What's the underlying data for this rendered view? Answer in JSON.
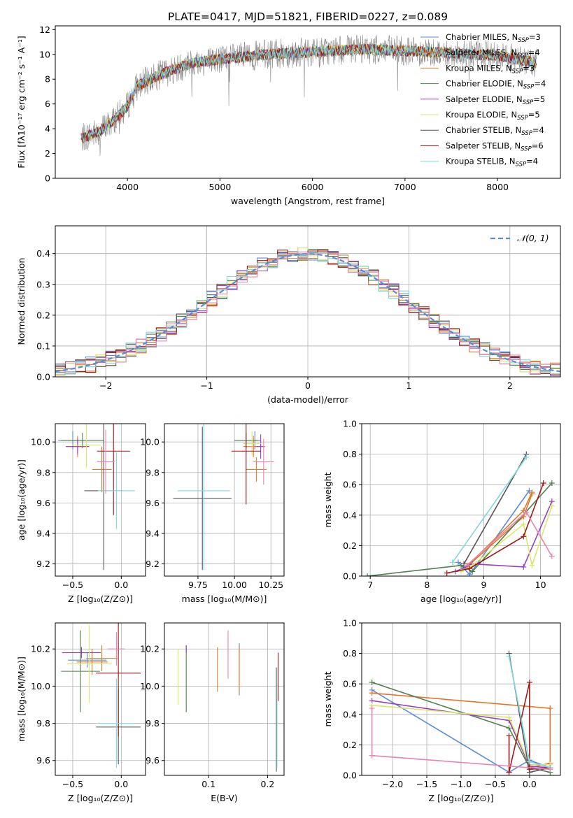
{
  "title": "PLATE=0417, MJD=51821, FIBERID=0227, z=0.089",
  "series_colors": [
    "#5b8bd6",
    "#e8742a",
    "#d67f2e",
    "#4f7f4f",
    "#9a3fc0",
    "#d8e86a",
    "#555555",
    "#a01818",
    "#80d8e0"
  ],
  "chart_data": [
    {
      "type": "line",
      "xlabel": "wavelength [Angstrom, rest frame]",
      "ylabel": "Flux [fλ10⁻¹⁷ erg cm⁻² s⁻¹ A⁻¹]",
      "xlim": [
        3220,
        8680
      ],
      "ylim": [
        0,
        12.3
      ],
      "xticks": [
        "4000",
        "5000",
        "6000",
        "7000",
        "8000"
      ],
      "yticks": [
        "0",
        "2",
        "4",
        "6",
        "8",
        "10",
        "12"
      ],
      "legend_position": "right",
      "legend": [
        "Chabrier MILES, N_SSP=3",
        "Salpeter MILES, N_SSP=4",
        "Kroupa MILES, N_SSP=3",
        "Chabrier ELODIE, N_SSP=4",
        "Salpeter ELODIE, N_SSP=5",
        "Kroupa ELODIE, N_SSP=5",
        "Chabrier STELIB, N_SSP=4",
        "Salpeter STELIB, N_SSP=6",
        "Kroupa STELIB, N_SSP=4"
      ],
      "x_range": [
        3500,
        8420
      ],
      "continuum": [
        [
          3500,
          3.2
        ],
        [
          3700,
          3.8
        ],
        [
          3900,
          5.0
        ],
        [
          4000,
          5.8
        ],
        [
          4100,
          7.4
        ],
        [
          4300,
          8.2
        ],
        [
          4500,
          8.8
        ],
        [
          4700,
          9.3
        ],
        [
          5000,
          9.6
        ],
        [
          5500,
          10.0
        ],
        [
          6000,
          10.2
        ],
        [
          6500,
          10.4
        ],
        [
          7000,
          10.3
        ],
        [
          7500,
          10.1
        ],
        [
          8000,
          9.9
        ],
        [
          8420,
          9.3
        ]
      ]
    },
    {
      "type": "line",
      "xlabel": "(data-model)/error",
      "ylabel": "Normed distribution",
      "xlim": [
        -2.5,
        2.5
      ],
      "ylim": [
        0,
        0.49
      ],
      "xticks": [
        "−2",
        "−1",
        "0",
        "1",
        "2"
      ],
      "yticks": [
        "0.0",
        "0.1",
        "0.2",
        "0.3",
        "0.4"
      ],
      "legend": [
        "𝒩(0, 1)"
      ],
      "legend_position": "top-right",
      "grid": true,
      "bin_width": 0.1
    },
    {
      "type": "scatter",
      "xlabel": "Z [log₁₀(Z/Z⊙)]",
      "ylabel": "age  [log₁₀(age/yr)]",
      "xlim": [
        -0.68,
        0.25
      ],
      "ylim": [
        9.12,
        10.12
      ],
      "xticks": [
        "−0.5",
        "0.0"
      ],
      "yticks": [
        "9.2",
        "9.4",
        "9.6",
        "9.8",
        "10.0"
      ],
      "grid": true,
      "points": [
        {
          "s": 0,
          "x": -0.5,
          "y": 10.01,
          "xerr": 0.15,
          "yerr": 0.06
        },
        {
          "s": 1,
          "x": -0.45,
          "y": 9.97,
          "xerr": 0.12,
          "yerr": 0.07
        },
        {
          "s": 2,
          "x": -0.2,
          "y": 9.82,
          "xerr": 0.1,
          "yerr": 0.15
        },
        {
          "s": 3,
          "x": -0.4,
          "y": 10.01,
          "xerr": 0.22,
          "yerr": 0.05
        },
        {
          "s": 4,
          "x": -0.45,
          "y": 9.97,
          "xerr": 0.12,
          "yerr": 0.05
        },
        {
          "s": 5,
          "x": -0.36,
          "y": 9.98,
          "xerr": 0.15,
          "yerr": 0.15
        },
        {
          "s": 6,
          "x": -0.18,
          "y": 9.68,
          "xerr": 0.2,
          "yerr": 0.52
        },
        {
          "s": 7,
          "x": -0.08,
          "y": 9.94,
          "xerr": 0.17,
          "yerr": 0.42
        },
        {
          "s": 8,
          "x": -0.05,
          "y": 9.68,
          "xerr": 0.19,
          "yerr": 0.25
        },
        {
          "s": 9,
          "x": -0.16,
          "y": 9.87,
          "xerr": 0.09,
          "yerr": 0.21
        }
      ]
    },
    {
      "type": "scatter",
      "xlabel": "mass [log₁₀(M/M⊙)]",
      "ylabel": "",
      "xlim": [
        9.52,
        10.34
      ],
      "ylim": [
        9.12,
        10.12
      ],
      "xticks": [
        "9.75",
        "10.00",
        "10.25"
      ],
      "yticks": [
        "9.2",
        "9.4",
        "9.6",
        "9.8",
        "10.0"
      ],
      "grid": true,
      "points": [
        {
          "s": 0,
          "x": 10.14,
          "y": 10.01,
          "xerr": 0.04,
          "yerr": 0.06
        },
        {
          "s": 1,
          "x": 10.13,
          "y": 9.97,
          "xerr": 0.07,
          "yerr": 0.07
        },
        {
          "s": 2,
          "x": 10.15,
          "y": 9.82,
          "xerr": 0.07,
          "yerr": 0.08
        },
        {
          "s": 3,
          "x": 10.08,
          "y": 10.01,
          "xerr": 0.08,
          "yerr": 0.05
        },
        {
          "s": 4,
          "x": 10.18,
          "y": 9.97,
          "xerr": 0.03,
          "yerr": 0.08
        },
        {
          "s": 5,
          "x": 10.12,
          "y": 9.99,
          "xerr": 0.06,
          "yerr": 0.08
        },
        {
          "s": 6,
          "x": 9.78,
          "y": 9.63,
          "xerr": 0.2,
          "yerr": 0.47
        },
        {
          "s": 7,
          "x": 10.08,
          "y": 9.94,
          "xerr": 0.1,
          "yerr": 0.35
        },
        {
          "s": 8,
          "x": 9.79,
          "y": 9.68,
          "xerr": 0.18,
          "yerr": 0.52
        },
        {
          "s": 9,
          "x": 10.2,
          "y": 9.87,
          "xerr": 0.07,
          "yerr": 0.15
        }
      ]
    },
    {
      "type": "line",
      "xlabel": "age  [log₁₀(age/yr)]",
      "ylabel": "mass weight",
      "xlim": [
        6.85,
        10.35
      ],
      "ylim": [
        0,
        1.0
      ],
      "xticks": [
        "7",
        "8",
        "9",
        "10"
      ],
      "yticks": [
        "0.0",
        "0.2",
        "0.4",
        "0.6",
        "0.8",
        "1.0"
      ],
      "grid": true,
      "series": [
        {
          "s": 0,
          "points": [
            [
              8.55,
              0.09
            ],
            [
              8.75,
              0.01
            ],
            [
              9.8,
              0.56
            ]
          ]
        },
        {
          "s": 1,
          "points": [
            [
              8.7,
              0.06
            ],
            [
              9.7,
              0.39
            ],
            [
              9.85,
              0.54
            ]
          ]
        },
        {
          "s": 2,
          "points": [
            [
              8.72,
              0.07
            ],
            [
              9.7,
              0.43
            ],
            [
              9.85,
              0.55
            ]
          ]
        },
        {
          "s": 3,
          "points": [
            [
              6.95,
              0.0
            ],
            [
              8.6,
              0.07
            ],
            [
              8.8,
              0.03
            ],
            [
              10.2,
              0.61
            ]
          ]
        },
        {
          "s": 4,
          "points": [
            [
              8.5,
              0.03
            ],
            [
              8.8,
              0.08
            ],
            [
              9.7,
              0.06
            ],
            [
              10.2,
              0.49
            ]
          ]
        },
        {
          "s": 5,
          "points": [
            [
              8.6,
              0.03
            ],
            [
              8.8,
              0.07
            ],
            [
              9.7,
              0.34
            ],
            [
              9.85,
              0.07
            ],
            [
              10.2,
              0.46
            ]
          ]
        },
        {
          "s": 6,
          "points": [
            [
              8.65,
              0.08
            ],
            [
              9.75,
              0.8
            ]
          ]
        },
        {
          "s": 7,
          "points": [
            [
              8.35,
              0.02
            ],
            [
              8.75,
              0.05
            ],
            [
              9.7,
              0.26
            ],
            [
              10.05,
              0.61
            ]
          ]
        },
        {
          "s": 8,
          "points": [
            [
              8.45,
              0.09
            ],
            [
              9.75,
              0.78
            ]
          ]
        },
        {
          "s": 9,
          "points": [
            [
              8.7,
              0.07
            ],
            [
              9.75,
              0.42
            ],
            [
              10.2,
              0.13
            ]
          ]
        }
      ]
    },
    {
      "type": "scatter",
      "xlabel": "Z [log₁₀(Z/Z⊙)]",
      "ylabel": "mass [log₁₀(M/M⊙)]",
      "xlim": [
        -0.68,
        0.25
      ],
      "ylim": [
        9.52,
        10.34
      ],
      "xticks": [
        "−0.5",
        "0.0"
      ],
      "yticks": [
        "9.6",
        "9.8",
        "10.0",
        "10.2"
      ],
      "grid": true,
      "points": [
        {
          "s": 0,
          "x": -0.35,
          "y": 10.14,
          "xerr": 0.2,
          "yerr": 0.04
        },
        {
          "s": 1,
          "x": -0.3,
          "y": 10.13,
          "xerr": 0.16,
          "yerr": 0.07
        },
        {
          "s": 2,
          "x": -0.2,
          "y": 10.15,
          "xerr": 0.16,
          "yerr": 0.07
        },
        {
          "s": 3,
          "x": -0.42,
          "y": 10.08,
          "xerr": 0.2,
          "yerr": 0.22
        },
        {
          "s": 4,
          "x": -0.41,
          "y": 10.18,
          "xerr": 0.2,
          "yerr": 0.03
        },
        {
          "s": 5,
          "x": -0.33,
          "y": 10.12,
          "xerr": 0.23,
          "yerr": 0.21
        },
        {
          "s": 6,
          "x": -0.03,
          "y": 9.78,
          "xerr": 0.23,
          "yerr": 0.2
        },
        {
          "s": 7,
          "x": -0.03,
          "y": 10.07,
          "xerr": 0.23,
          "yerr": 0.34
        },
        {
          "s": 8,
          "x": -0.05,
          "y": 9.8,
          "xerr": 0.19,
          "yerr": 0.24
        },
        {
          "s": 9,
          "x": -0.05,
          "y": 10.2,
          "xerr": 0.09,
          "yerr": 0.09
        }
      ]
    },
    {
      "type": "scatter",
      "xlabel": "E(B-V)",
      "ylabel": "",
      "xlim": [
        0.025,
        0.228
      ],
      "ylim": [
        9.52,
        10.34
      ],
      "xticks": [
        "0.1",
        "0.2"
      ],
      "yticks": [
        "9.6",
        "9.8",
        "10.0",
        "10.2"
      ],
      "grid": true,
      "points": [
        {
          "s": 0,
          "x": 0.152,
          "y": 10.09,
          "yerr": 0.14
        },
        {
          "s": 1,
          "x": 0.152,
          "y": 10.09,
          "yerr": 0.12
        },
        {
          "s": 2,
          "x": 0.115,
          "y": 10.09,
          "yerr": 0.12
        },
        {
          "s": 3,
          "x": 0.062,
          "y": 10.04,
          "yerr": 0.18
        },
        {
          "s": 4,
          "x": 0.062,
          "y": 10.2,
          "yerr": 0.02
        },
        {
          "s": 5,
          "x": 0.048,
          "y": 10.05,
          "yerr": 0.15
        },
        {
          "s": 6,
          "x": 0.215,
          "y": 9.82,
          "yerr": 0.28
        },
        {
          "s": 7,
          "x": 0.218,
          "y": 10.05,
          "yerr": 0.13
        },
        {
          "s": 8,
          "x": 0.216,
          "y": 9.83,
          "yerr": 0.27
        },
        {
          "s": 9,
          "x": 0.133,
          "y": 10.17,
          "yerr": 0.13
        }
      ]
    },
    {
      "type": "line",
      "xlabel": "Z [log₁₀(Z/Z⊙)]",
      "ylabel": "mass weight",
      "xlim": [
        -2.45,
        0.45
      ],
      "ylim": [
        0,
        1.0
      ],
      "xticks": [
        "−2.0",
        "−1.5",
        "−1.0",
        "−0.5",
        "0.0"
      ],
      "yticks": [
        "0.0",
        "0.2",
        "0.4",
        "0.6",
        "0.8",
        "1.0"
      ],
      "grid": true,
      "series": [
        {
          "s": 0,
          "points": [
            [
              -2.3,
              0.56
            ],
            [
              -0.3,
              0.02
            ],
            [
              0.0,
              0.1
            ],
            [
              0.3,
              0.05
            ]
          ]
        },
        {
          "s": 1,
          "points": [
            [
              -2.3,
              0.54
            ],
            [
              0.3,
              0.44
            ],
            [
              0.3,
              0.08
            ],
            [
              0.0,
              0.05
            ]
          ]
        },
        {
          "s": 3,
          "points": [
            [
              -2.3,
              0.61
            ],
            [
              -0.3,
              0.31
            ],
            [
              0.0,
              0.05
            ],
            [
              0.3,
              0.02
            ]
          ]
        },
        {
          "s": 4,
          "points": [
            [
              -2.3,
              0.49
            ],
            [
              -0.3,
              0.36
            ],
            [
              0.0,
              0.06
            ],
            [
              0.3,
              0.05
            ]
          ]
        },
        {
          "s": 5,
          "points": [
            [
              -2.3,
              0.46
            ],
            [
              -0.3,
              0.38
            ],
            [
              0.0,
              0.07
            ],
            [
              0.3,
              0.07
            ]
          ]
        },
        {
          "s": 6,
          "points": [
            [
              -0.3,
              0.8
            ],
            [
              0.0,
              0.02
            ],
            [
              0.3,
              0.05
            ]
          ]
        },
        {
          "s": 7,
          "points": [
            [
              -0.3,
              0.26
            ],
            [
              -0.3,
              0.02
            ],
            [
              0.0,
              0.61
            ],
            [
              0.0,
              0.04
            ],
            [
              0.3,
              0.05
            ]
          ]
        },
        {
          "s": 8,
          "points": [
            [
              -0.3,
              0.78
            ],
            [
              0.0,
              0.09
            ],
            [
              0.3,
              0.05
            ]
          ]
        },
        {
          "s": 9,
          "points": [
            [
              -2.3,
              0.44
            ],
            [
              -2.3,
              0.13
            ],
            [
              0.3,
              0.04
            ]
          ]
        }
      ]
    }
  ]
}
